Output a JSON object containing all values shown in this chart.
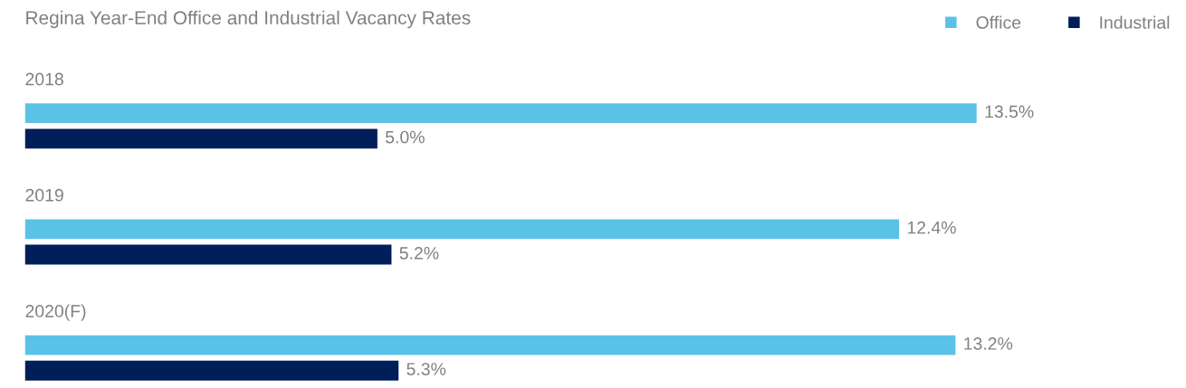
{
  "chart_data": {
    "type": "bar",
    "orientation": "horizontal",
    "title": "Regina Year-End Office and Industrial Vacancy Rates",
    "categories": [
      "2018",
      "2019",
      "2020(F)"
    ],
    "series": [
      {
        "name": "Office",
        "color": "#5bc2e7",
        "values": [
          13.5,
          12.4,
          13.2
        ],
        "value_labels": [
          "13.5%",
          "12.4%",
          "13.2%"
        ]
      },
      {
        "name": "Industrial",
        "color": "#001e5a",
        "values": [
          5.0,
          5.2,
          5.3
        ],
        "value_labels": [
          "5.0%",
          "5.2%",
          "5.3%"
        ]
      }
    ],
    "legend": "top right"
  }
}
